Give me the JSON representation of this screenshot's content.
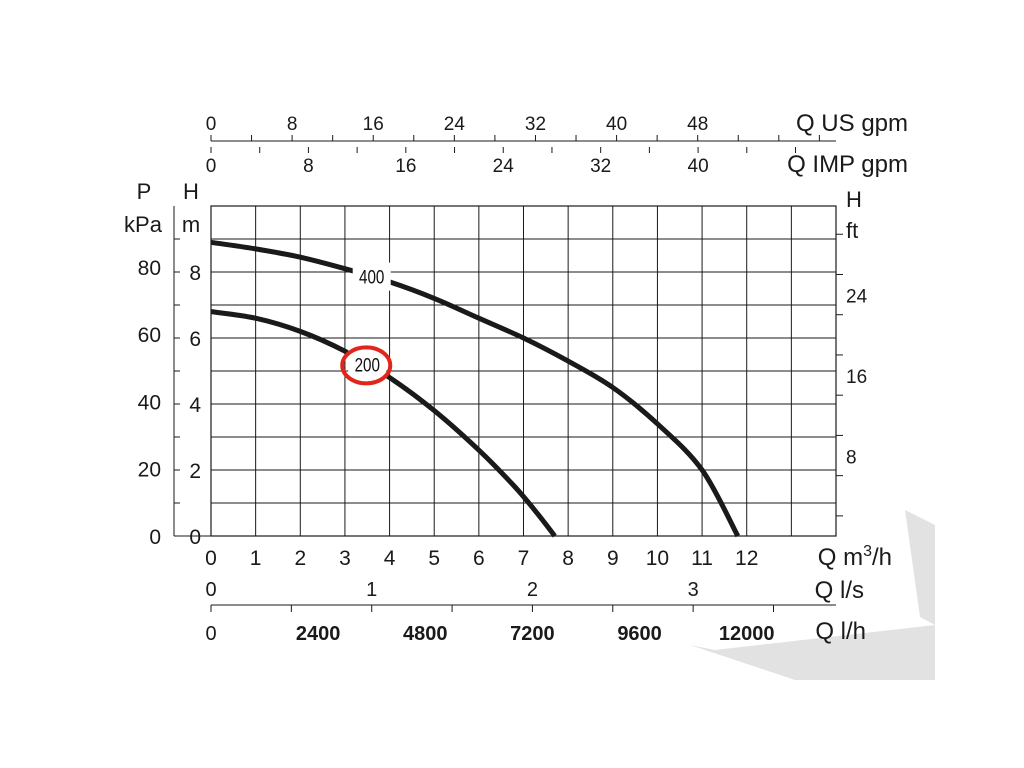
{
  "chart_data": {
    "type": "line",
    "x_unit_label": "Q m³/h",
    "x_ticks": [
      "0",
      "1",
      "2",
      "3",
      "4",
      "5",
      "6",
      "7",
      "8",
      "9",
      "10",
      "11",
      "12"
    ],
    "xlim": [
      0,
      14
    ],
    "left_axis_H": {
      "title_top": "H",
      "title_bottom": "m",
      "ticks": [
        "0",
        "2",
        "4",
        "6",
        "8"
      ],
      "ylim": [
        0,
        10
      ]
    },
    "left_axis_P": {
      "title_top": "P",
      "title_bottom": "kPa",
      "ticks": [
        "0",
        "20",
        "40",
        "60",
        "80"
      ]
    },
    "right_axis_H": {
      "title_top": "H",
      "title_bottom": "ft",
      "ticks": [
        "8",
        "16",
        "24"
      ]
    },
    "top_axis_us": {
      "label": "Q US gpm",
      "ticks": [
        "0",
        "8",
        "16",
        "24",
        "32",
        "40",
        "48"
      ]
    },
    "top_axis_imp": {
      "label": "Q IMP gpm",
      "ticks": [
        "0",
        "8",
        "16",
        "24",
        "32",
        "40"
      ]
    },
    "bottom_axis_ls": {
      "label": "Q l/s",
      "ticks": [
        "0",
        "1",
        "2",
        "3"
      ]
    },
    "bottom_axis_lh": {
      "label": "Q l/h",
      "ticks": [
        "0",
        "2400",
        "4800",
        "7200",
        "9600",
        "12000"
      ]
    },
    "series": [
      {
        "name": "400",
        "x": [
          0,
          1,
          2,
          3,
          4,
          5,
          6,
          7,
          8,
          9,
          10,
          11,
          11.8
        ],
        "y": [
          8.9,
          8.7,
          8.45,
          8.1,
          7.7,
          7.2,
          6.6,
          6.0,
          5.3,
          4.5,
          3.4,
          2.0,
          0
        ]
      },
      {
        "name": "200",
        "x": [
          0,
          1,
          2,
          3,
          4,
          5,
          6,
          6.8,
          7.3,
          7.7
        ],
        "y": [
          6.8,
          6.6,
          6.2,
          5.6,
          4.8,
          3.8,
          2.6,
          1.5,
          0.7,
          0
        ]
      }
    ],
    "highlight_series": "200",
    "highlight_color": "#e1251b",
    "curve_color": "#1a1a1a",
    "grid": true
  }
}
